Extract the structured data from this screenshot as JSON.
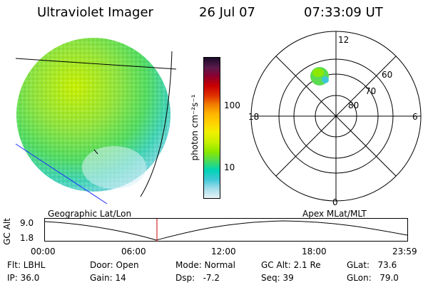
{
  "header": {
    "title": "Ultraviolet Imager",
    "date": "26 Jul 07",
    "time": "07:33:09 UT"
  },
  "colorbar": {
    "unit_label": "photon cm⁻²s⁻¹",
    "ticks": [
      "100",
      "10"
    ],
    "colors": [
      "#1a0a2a",
      "#5a1b4c",
      "#8a0030",
      "#c80000",
      "#e03000",
      "#f07a00",
      "#ffb400",
      "#ffd400",
      "#f0f000",
      "#c8f000",
      "#8ce800",
      "#50dc50",
      "#00d4b4",
      "#40c8d8",
      "#a0dce8",
      "#e8f4f8"
    ]
  },
  "polar": {
    "lat_labels": [
      "80",
      "70",
      "60"
    ],
    "mlt_labels": {
      "top": "12",
      "bottom": "0",
      "left": "18",
      "right": "6"
    }
  },
  "labels": {
    "geographic": "Geographic Lat/Lon",
    "apex": "Apex MLat/MLT"
  },
  "alt_plot": {
    "axis_label": "GC Alt",
    "y_top": "9.0",
    "y_bottom": "1.8",
    "x_ticks": [
      "00:00",
      "06:00",
      "12:00",
      "18:00",
      "23:59"
    ],
    "marker_color": "#cc0000"
  },
  "info": {
    "flt": "Flt: LBHL",
    "ip": "IP: 36.0",
    "door": "Door: Open",
    "gain": "Gain: 14",
    "mode": "Mode: Normal",
    "dsp": "Dsp:   -7.2",
    "gcalt": "GC Alt: 2.1 Re",
    "seq": "Seq: 39",
    "glat": "GLat:   73.6",
    "glon": "GLon:   79.0"
  }
}
